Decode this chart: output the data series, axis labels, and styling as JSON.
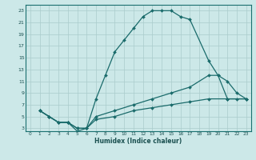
{
  "xlabel": "Humidex (Indice chaleur)",
  "bg_color": "#cce8e8",
  "grid_color": "#aacccc",
  "line_color": "#1a6b6b",
  "xlim": [
    -0.5,
    23.5
  ],
  "ylim": [
    2.5,
    24
  ],
  "xticks": [
    0,
    1,
    2,
    3,
    4,
    5,
    6,
    7,
    8,
    9,
    10,
    11,
    12,
    13,
    14,
    15,
    16,
    17,
    18,
    19,
    20,
    21,
    22,
    23
  ],
  "yticks": [
    3,
    5,
    7,
    9,
    11,
    13,
    15,
    17,
    19,
    21,
    23
  ],
  "line1_x": [
    1,
    2,
    3,
    4,
    5,
    6,
    7,
    8,
    9,
    10,
    11,
    12,
    13,
    14,
    15,
    16,
    17,
    19,
    20,
    21,
    22,
    23
  ],
  "line1_y": [
    6,
    5,
    4,
    4,
    2.5,
    3,
    8,
    12,
    16,
    18,
    20,
    22,
    23,
    23,
    23,
    22,
    21.5,
    14.5,
    12,
    11,
    9,
    8
  ],
  "line2_x": [
    1,
    2,
    3,
    4,
    5,
    6,
    7,
    9,
    11,
    13,
    15,
    17,
    19,
    20,
    21,
    22,
    23
  ],
  "line2_y": [
    6,
    5,
    4,
    4,
    3,
    3,
    5,
    6,
    7,
    8,
    9,
    10,
    12,
    12,
    8,
    8,
    8
  ],
  "line3_x": [
    1,
    2,
    3,
    4,
    5,
    6,
    7,
    9,
    11,
    13,
    15,
    17,
    19,
    21,
    23
  ],
  "line3_y": [
    6,
    5,
    4,
    4,
    3,
    3,
    4.5,
    5,
    6,
    6.5,
    7,
    7.5,
    8,
    8,
    8
  ]
}
